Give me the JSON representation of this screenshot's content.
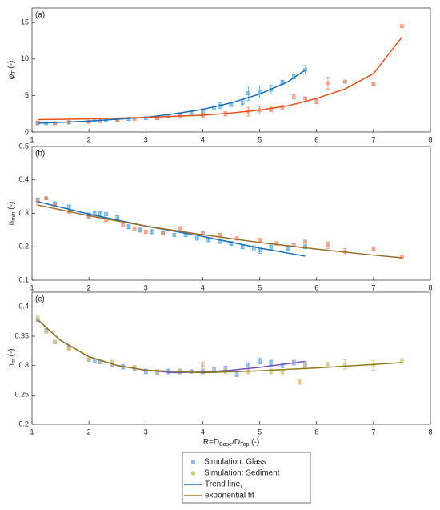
{
  "chart_data": [
    {
      "type": "scatter",
      "title": "(a)",
      "xlim": [
        1,
        8
      ],
      "xticks": [
        1,
        2,
        3,
        4,
        5,
        6,
        7,
        8
      ],
      "ylim": [
        0,
        17
      ],
      "yticks": [
        0,
        5,
        10,
        15
      ],
      "ylabel_parts": [
        {
          "text": "φ",
          "italic": true
        },
        {
          "text": "T",
          "sub": true,
          "italic": true
        },
        {
          "text": " (-)"
        }
      ],
      "series": [
        {
          "marker": "square",
          "color": "#5aaee0",
          "x": [
            1.1,
            1.25,
            1.4,
            1.65,
            2,
            2.1,
            2.3,
            2.5,
            2.7,
            3.0,
            3.2,
            3.4,
            3.6,
            3.8,
            4.0,
            4.2,
            4.3,
            4.5,
            4.7,
            4.8,
            5.0,
            5.2,
            5.4,
            5.6,
            5.8
          ],
          "values": [
            1.2,
            1.2,
            1.2,
            1.3,
            1.4,
            1.6,
            1.7,
            1.7,
            1.8,
            1.9,
            2.0,
            2.2,
            2.4,
            2.6,
            2.9,
            3.3,
            3.6,
            3.8,
            4.0,
            5.3,
            5.5,
            5.8,
            6.8,
            7.6,
            8.5
          ],
          "errors": [
            0.2,
            0.1,
            0.1,
            0.2,
            0.2,
            0.2,
            0.2,
            0.2,
            0.2,
            0.2,
            0.2,
            0.2,
            0.2,
            0.2,
            0.3,
            0.3,
            0.4,
            0.3,
            0.4,
            1.0,
            0.8,
            0.6,
            0.3,
            0.3,
            0.6
          ]
        },
        {
          "marker": "circle",
          "color": "#f08a6a",
          "x": [
            1.1,
            1.4,
            1.65,
            2,
            2.2,
            2.5,
            2.8,
            3.2,
            3.6,
            4.0,
            4.4,
            4.8,
            5.0,
            5.2,
            5.4,
            5.6,
            5.8,
            6.0,
            6.2,
            6.5,
            7.0,
            7.5
          ],
          "values": [
            1.3,
            1.2,
            1.4,
            1.4,
            1.5,
            1.6,
            1.8,
            1.9,
            2.1,
            2.3,
            2.5,
            2.8,
            3.0,
            3.1,
            3.4,
            4.8,
            4.6,
            4.2,
            6.7,
            6.9,
            6.6,
            14.5
          ],
          "errors": [
            0.2,
            0.1,
            0.1,
            0.2,
            0.2,
            0.2,
            0.2,
            0.2,
            0.2,
            0.3,
            0.3,
            0.6,
            0.5,
            0.3,
            0.3,
            0.3,
            0.2,
            0.3,
            0.8,
            0.2,
            0.2,
            0.2
          ]
        }
      ],
      "trends": [
        {
          "color": "#1a6fb8",
          "x": [
            1.1,
            2,
            3,
            3.5,
            4,
            4.5,
            5,
            5.5,
            5.8
          ],
          "values": [
            1.2,
            1.5,
            2.0,
            2.5,
            3.1,
            4.0,
            5.2,
            6.9,
            8.5
          ]
        },
        {
          "color": "#e8501a",
          "x": [
            1.1,
            2,
            3,
            4,
            4.5,
            5,
            5.5,
            6,
            6.5,
            7,
            7.5
          ],
          "values": [
            1.7,
            1.8,
            2.0,
            2.3,
            2.6,
            3.0,
            3.6,
            4.6,
            5.9,
            8.0,
            13.0
          ]
        }
      ]
    },
    {
      "type": "scatter",
      "title": "(b)",
      "xlim": [
        1,
        8
      ],
      "xticks": [
        1,
        2,
        3,
        4,
        5,
        6,
        7,
        8
      ],
      "ylim": [
        0.1,
        0.5
      ],
      "yticks": [
        0.1,
        0.2,
        0.3,
        0.4,
        0.5
      ],
      "ylabel_parts": [
        {
          "text": "n"
        },
        {
          "text": "min",
          "sub": true
        },
        {
          "text": " (-)"
        }
      ],
      "series": [
        {
          "marker": "square",
          "color": "#5aaee0",
          "x": [
            1.1,
            1.25,
            1.4,
            1.65,
            2,
            2.1,
            2.2,
            2.3,
            2.5,
            2.7,
            2.9,
            3.1,
            3.3,
            3.5,
            3.7,
            3.9,
            4.1,
            4.3,
            4.5,
            4.7,
            4.9,
            5.0,
            5.2,
            5.5,
            5.8
          ],
          "values": [
            0.34,
            0.345,
            0.33,
            0.32,
            0.295,
            0.3,
            0.3,
            0.298,
            0.285,
            0.26,
            0.25,
            0.245,
            0.24,
            0.235,
            0.235,
            0.225,
            0.22,
            0.215,
            0.21,
            0.2,
            0.195,
            0.19,
            0.2,
            0.195,
            0.2
          ],
          "errors": [
            0.006,
            0.004,
            0.005,
            0.005,
            0.006,
            0.006,
            0.006,
            0.005,
            0.008,
            0.006,
            0.006,
            0.006,
            0.005,
            0.005,
            0.005,
            0.005,
            0.005,
            0.005,
            0.006,
            0.006,
            0.008,
            0.01,
            0.008,
            0.006,
            0.006
          ]
        },
        {
          "marker": "circle",
          "color": "#f08a6a",
          "x": [
            1.1,
            1.25,
            1.4,
            1.65,
            2.0,
            2.3,
            2.6,
            2.8,
            3.0,
            3.3,
            3.6,
            4.0,
            4.3,
            4.6,
            5.0,
            5.3,
            5.6,
            5.8,
            6.2,
            6.5,
            7.0,
            7.5
          ],
          "values": [
            0.335,
            0.345,
            0.325,
            0.305,
            0.29,
            0.28,
            0.265,
            0.255,
            0.245,
            0.24,
            0.255,
            0.24,
            0.235,
            0.225,
            0.22,
            0.21,
            0.205,
            0.215,
            0.205,
            0.185,
            0.195,
            0.17
          ],
          "errors": [
            0.01,
            0.004,
            0.005,
            0.004,
            0.005,
            0.005,
            0.006,
            0.005,
            0.005,
            0.005,
            0.005,
            0.005,
            0.005,
            0.005,
            0.005,
            0.005,
            0.005,
            0.005,
            0.01,
            0.01,
            0.005,
            0.005
          ]
        }
      ],
      "trends": [
        {
          "color": "#1a6fb8",
          "x": [
            1.1,
            2,
            3,
            4,
            5,
            5.8
          ],
          "values": [
            0.335,
            0.298,
            0.262,
            0.231,
            0.196,
            0.172
          ]
        },
        {
          "color": "#9c6b2a",
          "x": [
            1.1,
            2,
            3,
            4,
            5,
            6,
            7,
            7.5
          ],
          "values": [
            0.325,
            0.293,
            0.262,
            0.236,
            0.213,
            0.193,
            0.175,
            0.167
          ]
        }
      ]
    },
    {
      "type": "scatter",
      "title": "(c)",
      "xlim": [
        1,
        8
      ],
      "xticks": [
        1,
        2,
        3,
        4,
        5,
        6,
        7,
        8
      ],
      "ylim": [
        0.2,
        0.425
      ],
      "yticks": [
        0.2,
        0.25,
        0.3,
        0.35,
        0.4
      ],
      "ylabel_parts": [
        {
          "text": "n"
        },
        {
          "text": "m",
          "sub": true
        },
        {
          "text": " (-)"
        }
      ],
      "xlabel_parts": [
        {
          "text": "R=D"
        },
        {
          "text": "Base",
          "sub": true
        },
        {
          "text": "/D"
        },
        {
          "text": "Top",
          "sub": true
        },
        {
          "text": " (-)"
        }
      ],
      "series": [
        {
          "marker": "square",
          "color": "#7fa8e8",
          "x": [
            1.1,
            1.25,
            1.4,
            1.65,
            2.0,
            2.1,
            2.2,
            2.4,
            2.6,
            2.8,
            3.0,
            3.2,
            3.4,
            3.6,
            3.8,
            4.0,
            4.2,
            4.4,
            4.6,
            4.8,
            5.0,
            5.2,
            5.4,
            5.6,
            5.8
          ],
          "values": [
            0.378,
            0.36,
            0.34,
            0.33,
            0.31,
            0.308,
            0.306,
            0.302,
            0.298,
            0.295,
            0.29,
            0.288,
            0.29,
            0.29,
            0.29,
            0.29,
            0.292,
            0.295,
            0.285,
            0.3,
            0.308,
            0.305,
            0.3,
            0.305,
            0.3
          ],
          "errors": [
            0.003,
            0.003,
            0.003,
            0.003,
            0.003,
            0.003,
            0.003,
            0.004,
            0.004,
            0.004,
            0.004,
            0.004,
            0.004,
            0.004,
            0.003,
            0.004,
            0.004,
            0.004,
            0.004,
            0.005,
            0.005,
            0.004,
            0.004,
            0.004,
            0.004
          ]
        },
        {
          "marker": "circle",
          "color": "#d6c27a",
          "x": [
            1.1,
            1.25,
            1.4,
            1.65,
            2.0,
            2.4,
            2.8,
            3.2,
            3.6,
            4.0,
            4.4,
            4.8,
            5.2,
            5.4,
            5.7,
            5.8,
            6.2,
            6.5,
            7.0,
            7.5
          ],
          "values": [
            0.382,
            0.358,
            0.34,
            0.328,
            0.31,
            0.305,
            0.297,
            0.29,
            0.29,
            0.3,
            0.29,
            0.29,
            0.29,
            0.288,
            0.272,
            0.3,
            0.302,
            0.302,
            0.3,
            0.308
          ],
          "errors": [
            0.004,
            0.003,
            0.003,
            0.003,
            0.003,
            0.004,
            0.003,
            0.003,
            0.003,
            0.006,
            0.004,
            0.004,
            0.004,
            0.004,
            0.004,
            0.006,
            0.004,
            0.008,
            0.008,
            0.004
          ]
        }
      ],
      "trends": [
        {
          "color": "#7050c0",
          "x": [
            1.1,
            1.5,
            2,
            2.5,
            3,
            3.5,
            4,
            4.5,
            5,
            5.8
          ],
          "values": [
            0.378,
            0.343,
            0.315,
            0.3,
            0.292,
            0.288,
            0.289,
            0.292,
            0.297,
            0.307
          ]
        },
        {
          "color": "#8f7a1a",
          "x": [
            1.1,
            1.5,
            2,
            2.5,
            3,
            4,
            5,
            6,
            7,
            7.5
          ],
          "values": [
            0.378,
            0.343,
            0.315,
            0.3,
            0.292,
            0.288,
            0.291,
            0.296,
            0.302,
            0.305
          ]
        }
      ]
    }
  ],
  "legend": [
    {
      "label": "Simulation: Glass",
      "kind": "square",
      "color": "#8fb8e8"
    },
    {
      "label": "Simulation: Sediment",
      "kind": "circle",
      "color": "#d8c880"
    },
    {
      "label": "Trend line,",
      "kind": "line",
      "color": "#1a6fb8"
    },
    {
      "label": "exponential fit",
      "kind": "line",
      "color": "#a07a20"
    }
  ]
}
